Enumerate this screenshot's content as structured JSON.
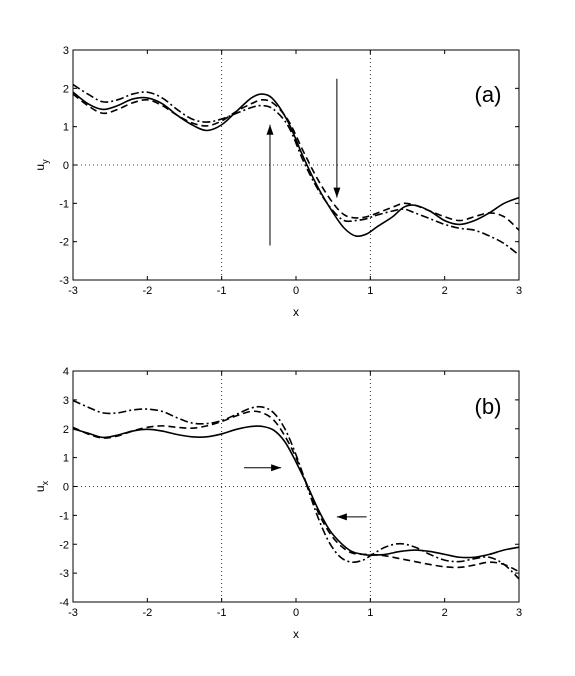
{
  "chart_data": [
    {
      "type": "line",
      "panel_label": "(a)",
      "xlabel": "x",
      "ylabel_base": "u",
      "ylabel_sub": "y",
      "xlim": [
        -3,
        3
      ],
      "ylim": [
        -3,
        3
      ],
      "xticks": [
        -3,
        -2,
        -1,
        0,
        1,
        2,
        3
      ],
      "yticks": [
        -3,
        -2,
        -1,
        0,
        1,
        2,
        3
      ],
      "grid": "dotted lines at x=-1, x=0? no; dotted at x=-1, x=1 and y=0",
      "series": [
        {
          "style": "solid",
          "points": [
            [
              -3,
              1.9
            ],
            [
              -2.8,
              1.6
            ],
            [
              -2.6,
              1.45
            ],
            [
              -2.4,
              1.55
            ],
            [
              -2.2,
              1.72
            ],
            [
              -2,
              1.75
            ],
            [
              -1.8,
              1.6
            ],
            [
              -1.6,
              1.3
            ],
            [
              -1.4,
              1.05
            ],
            [
              -1.2,
              0.9
            ],
            [
              -1,
              1.05
            ],
            [
              -0.8,
              1.4
            ],
            [
              -0.6,
              1.75
            ],
            [
              -0.45,
              1.85
            ],
            [
              -0.3,
              1.7
            ],
            [
              -0.1,
              1.1
            ],
            [
              0.1,
              0.2
            ],
            [
              0.3,
              -0.6
            ],
            [
              0.5,
              -1.25
            ],
            [
              0.65,
              -1.65
            ],
            [
              0.8,
              -1.85
            ],
            [
              0.95,
              -1.8
            ],
            [
              1.1,
              -1.6
            ],
            [
              1.3,
              -1.35
            ],
            [
              1.45,
              -1.1
            ],
            [
              1.6,
              -1.05
            ],
            [
              1.8,
              -1.2
            ],
            [
              2,
              -1.45
            ],
            [
              2.2,
              -1.55
            ],
            [
              2.4,
              -1.45
            ],
            [
              2.6,
              -1.25
            ],
            [
              2.8,
              -1.0
            ],
            [
              3,
              -0.85
            ]
          ]
        },
        {
          "style": "dashed",
          "points": [
            [
              -3,
              1.85
            ],
            [
              -2.8,
              1.55
            ],
            [
              -2.6,
              1.35
            ],
            [
              -2.4,
              1.45
            ],
            [
              -2.2,
              1.62
            ],
            [
              -2,
              1.7
            ],
            [
              -1.8,
              1.55
            ],
            [
              -1.6,
              1.3
            ],
            [
              -1.4,
              1.1
            ],
            [
              -1.2,
              1.02
            ],
            [
              -1,
              1.15
            ],
            [
              -0.8,
              1.4
            ],
            [
              -0.6,
              1.6
            ],
            [
              -0.45,
              1.7
            ],
            [
              -0.3,
              1.6
            ],
            [
              -0.1,
              1.15
            ],
            [
              0.1,
              0.35
            ],
            [
              0.3,
              -0.4
            ],
            [
              0.5,
              -1.0
            ],
            [
              0.65,
              -1.3
            ],
            [
              0.8,
              -1.38
            ],
            [
              0.95,
              -1.35
            ],
            [
              1.1,
              -1.25
            ],
            [
              1.3,
              -1.1
            ],
            [
              1.45,
              -1.0
            ],
            [
              1.6,
              -1.05
            ],
            [
              1.8,
              -1.2
            ],
            [
              2,
              -1.35
            ],
            [
              2.2,
              -1.45
            ],
            [
              2.4,
              -1.35
            ],
            [
              2.6,
              -1.25
            ],
            [
              2.8,
              -1.35
            ],
            [
              3,
              -1.7
            ]
          ]
        },
        {
          "style": "dashdot",
          "points": [
            [
              -3,
              2.1
            ],
            [
              -2.8,
              1.85
            ],
            [
              -2.6,
              1.65
            ],
            [
              -2.4,
              1.7
            ],
            [
              -2.2,
              1.85
            ],
            [
              -2,
              1.9
            ],
            [
              -1.8,
              1.75
            ],
            [
              -1.6,
              1.45
            ],
            [
              -1.4,
              1.2
            ],
            [
              -1.2,
              1.12
            ],
            [
              -1,
              1.2
            ],
            [
              -0.8,
              1.35
            ],
            [
              -0.6,
              1.5
            ],
            [
              -0.45,
              1.55
            ],
            [
              -0.3,
              1.45
            ],
            [
              -0.1,
              1.0
            ],
            [
              0.1,
              0.1
            ],
            [
              0.3,
              -0.65
            ],
            [
              0.5,
              -1.2
            ],
            [
              0.65,
              -1.45
            ],
            [
              0.8,
              -1.45
            ],
            [
              0.95,
              -1.4
            ],
            [
              1.1,
              -1.3
            ],
            [
              1.3,
              -1.2
            ],
            [
              1.45,
              -1.15
            ],
            [
              1.6,
              -1.25
            ],
            [
              1.8,
              -1.4
            ],
            [
              2,
              -1.55
            ],
            [
              2.2,
              -1.65
            ],
            [
              2.4,
              -1.7
            ],
            [
              2.6,
              -1.85
            ],
            [
              2.8,
              -2.05
            ],
            [
              3,
              -2.35
            ]
          ]
        }
      ],
      "arrows": [
        {
          "from": [
            -0.35,
            -2.1
          ],
          "to": [
            -0.35,
            1.05
          ],
          "direction": "up"
        },
        {
          "from": [
            0.55,
            2.25
          ],
          "to": [
            0.55,
            -0.85
          ],
          "direction": "down"
        }
      ]
    },
    {
      "type": "line",
      "panel_label": "(b)",
      "xlabel": "x",
      "ylabel_base": "u",
      "ylabel_sub": "x",
      "xlim": [
        -3,
        3
      ],
      "ylim": [
        -4,
        4
      ],
      "xticks": [
        -3,
        -2,
        -1,
        0,
        1,
        2,
        3
      ],
      "yticks": [
        -4,
        -3,
        -2,
        -1,
        0,
        1,
        2,
        3,
        4
      ],
      "series": [
        {
          "style": "solid",
          "points": [
            [
              -3,
              2.0
            ],
            [
              -2.8,
              1.85
            ],
            [
              -2.6,
              1.7
            ],
            [
              -2.4,
              1.78
            ],
            [
              -2.2,
              1.92
            ],
            [
              -2,
              1.98
            ],
            [
              -1.8,
              1.92
            ],
            [
              -1.6,
              1.8
            ],
            [
              -1.4,
              1.72
            ],
            [
              -1.2,
              1.72
            ],
            [
              -1,
              1.82
            ],
            [
              -0.8,
              1.98
            ],
            [
              -0.6,
              2.08
            ],
            [
              -0.45,
              2.08
            ],
            [
              -0.3,
              1.95
            ],
            [
              -0.15,
              1.55
            ],
            [
              0,
              0.85
            ],
            [
              0.15,
              0.05
            ],
            [
              0.3,
              -0.8
            ],
            [
              0.45,
              -1.5
            ],
            [
              0.6,
              -1.95
            ],
            [
              0.75,
              -2.25
            ],
            [
              0.9,
              -2.35
            ],
            [
              1,
              -2.38
            ],
            [
              1.2,
              -2.35
            ],
            [
              1.4,
              -2.25
            ],
            [
              1.6,
              -2.2
            ],
            [
              1.8,
              -2.25
            ],
            [
              2,
              -2.35
            ],
            [
              2.2,
              -2.45
            ],
            [
              2.4,
              -2.45
            ],
            [
              2.6,
              -2.35
            ],
            [
              2.8,
              -2.2
            ],
            [
              3,
              -2.1
            ]
          ]
        },
        {
          "style": "dashed",
          "points": [
            [
              -3,
              2.05
            ],
            [
              -2.8,
              1.82
            ],
            [
              -2.6,
              1.68
            ],
            [
              -2.4,
              1.75
            ],
            [
              -2.2,
              1.92
            ],
            [
              -2,
              2.05
            ],
            [
              -1.8,
              2.1
            ],
            [
              -1.6,
              2.05
            ],
            [
              -1.4,
              2.02
            ],
            [
              -1.2,
              2.1
            ],
            [
              -1,
              2.25
            ],
            [
              -0.8,
              2.45
            ],
            [
              -0.6,
              2.6
            ],
            [
              -0.45,
              2.55
            ],
            [
              -0.3,
              2.3
            ],
            [
              -0.15,
              1.75
            ],
            [
              0,
              1.0
            ],
            [
              0.15,
              0.05
            ],
            [
              0.3,
              -0.9
            ],
            [
              0.45,
              -1.6
            ],
            [
              0.6,
              -2.05
            ],
            [
              0.75,
              -2.3
            ],
            [
              0.9,
              -2.35
            ],
            [
              1,
              -2.35
            ],
            [
              1.2,
              -2.4
            ],
            [
              1.4,
              -2.5
            ],
            [
              1.6,
              -2.6
            ],
            [
              1.8,
              -2.7
            ],
            [
              2,
              -2.78
            ],
            [
              2.2,
              -2.8
            ],
            [
              2.4,
              -2.72
            ],
            [
              2.6,
              -2.62
            ],
            [
              2.8,
              -2.7
            ],
            [
              3,
              -2.95
            ]
          ]
        },
        {
          "style": "dashdot",
          "points": [
            [
              -3,
              2.98
            ],
            [
              -2.8,
              2.75
            ],
            [
              -2.6,
              2.55
            ],
            [
              -2.4,
              2.55
            ],
            [
              -2.2,
              2.65
            ],
            [
              -2,
              2.68
            ],
            [
              -1.8,
              2.6
            ],
            [
              -1.6,
              2.38
            ],
            [
              -1.4,
              2.2
            ],
            [
              -1.2,
              2.18
            ],
            [
              -1,
              2.28
            ],
            [
              -0.8,
              2.5
            ],
            [
              -0.6,
              2.72
            ],
            [
              -0.45,
              2.75
            ],
            [
              -0.3,
              2.55
            ],
            [
              -0.15,
              2.0
            ],
            [
              0,
              1.1
            ],
            [
              0.15,
              0.0
            ],
            [
              0.3,
              -1.1
            ],
            [
              0.45,
              -1.95
            ],
            [
              0.6,
              -2.45
            ],
            [
              0.75,
              -2.62
            ],
            [
              0.9,
              -2.55
            ],
            [
              1,
              -2.4
            ],
            [
              1.2,
              -2.1
            ],
            [
              1.4,
              -1.98
            ],
            [
              1.6,
              -2.1
            ],
            [
              1.8,
              -2.35
            ],
            [
              2,
              -2.55
            ],
            [
              2.2,
              -2.6
            ],
            [
              2.4,
              -2.5
            ],
            [
              2.6,
              -2.45
            ],
            [
              2.8,
              -2.7
            ],
            [
              3,
              -3.2
            ]
          ]
        }
      ],
      "arrows": [
        {
          "from": [
            -0.7,
            0.65
          ],
          "to": [
            -0.2,
            0.65
          ],
          "direction": "right"
        },
        {
          "from": [
            0.95,
            -1.05
          ],
          "to": [
            0.55,
            -1.05
          ],
          "direction": "left"
        }
      ]
    }
  ]
}
